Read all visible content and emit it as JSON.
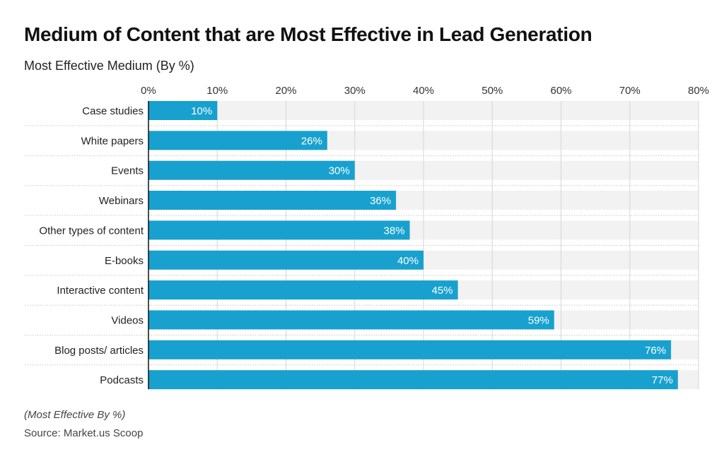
{
  "chart_data": {
    "type": "bar",
    "orientation": "horizontal",
    "title": "Medium of Content that are Most Effective in Lead Generation",
    "subtitle": "Most Effective Medium (By %)",
    "categories": [
      "Case studies",
      "White papers",
      "Events",
      "Webinars",
      "Other types of content",
      "E-books",
      "Interactive content",
      "Videos",
      "Blog posts/ articles",
      "Podcasts"
    ],
    "values": [
      10,
      26,
      30,
      36,
      38,
      40,
      45,
      59,
      76,
      77
    ],
    "data_labels": [
      "10%",
      "26%",
      "30%",
      "36%",
      "38%",
      "40%",
      "45%",
      "59%",
      "76%",
      "77%"
    ],
    "xlim": [
      0,
      80
    ],
    "x_ticks": [
      0,
      10,
      20,
      30,
      40,
      50,
      60,
      70,
      80
    ],
    "x_tick_labels": [
      "0%",
      "10%",
      "20%",
      "30%",
      "40%",
      "50%",
      "60%",
      "70%",
      "80%"
    ],
    "x_axis_position": "top",
    "grid": true,
    "colors": {
      "bar": "#18a1cf",
      "track": "#f2f2f2",
      "grid": "#d6d6d6"
    },
    "note": "(Most Effective By %)",
    "source": "Source: Market.us Scoop"
  }
}
